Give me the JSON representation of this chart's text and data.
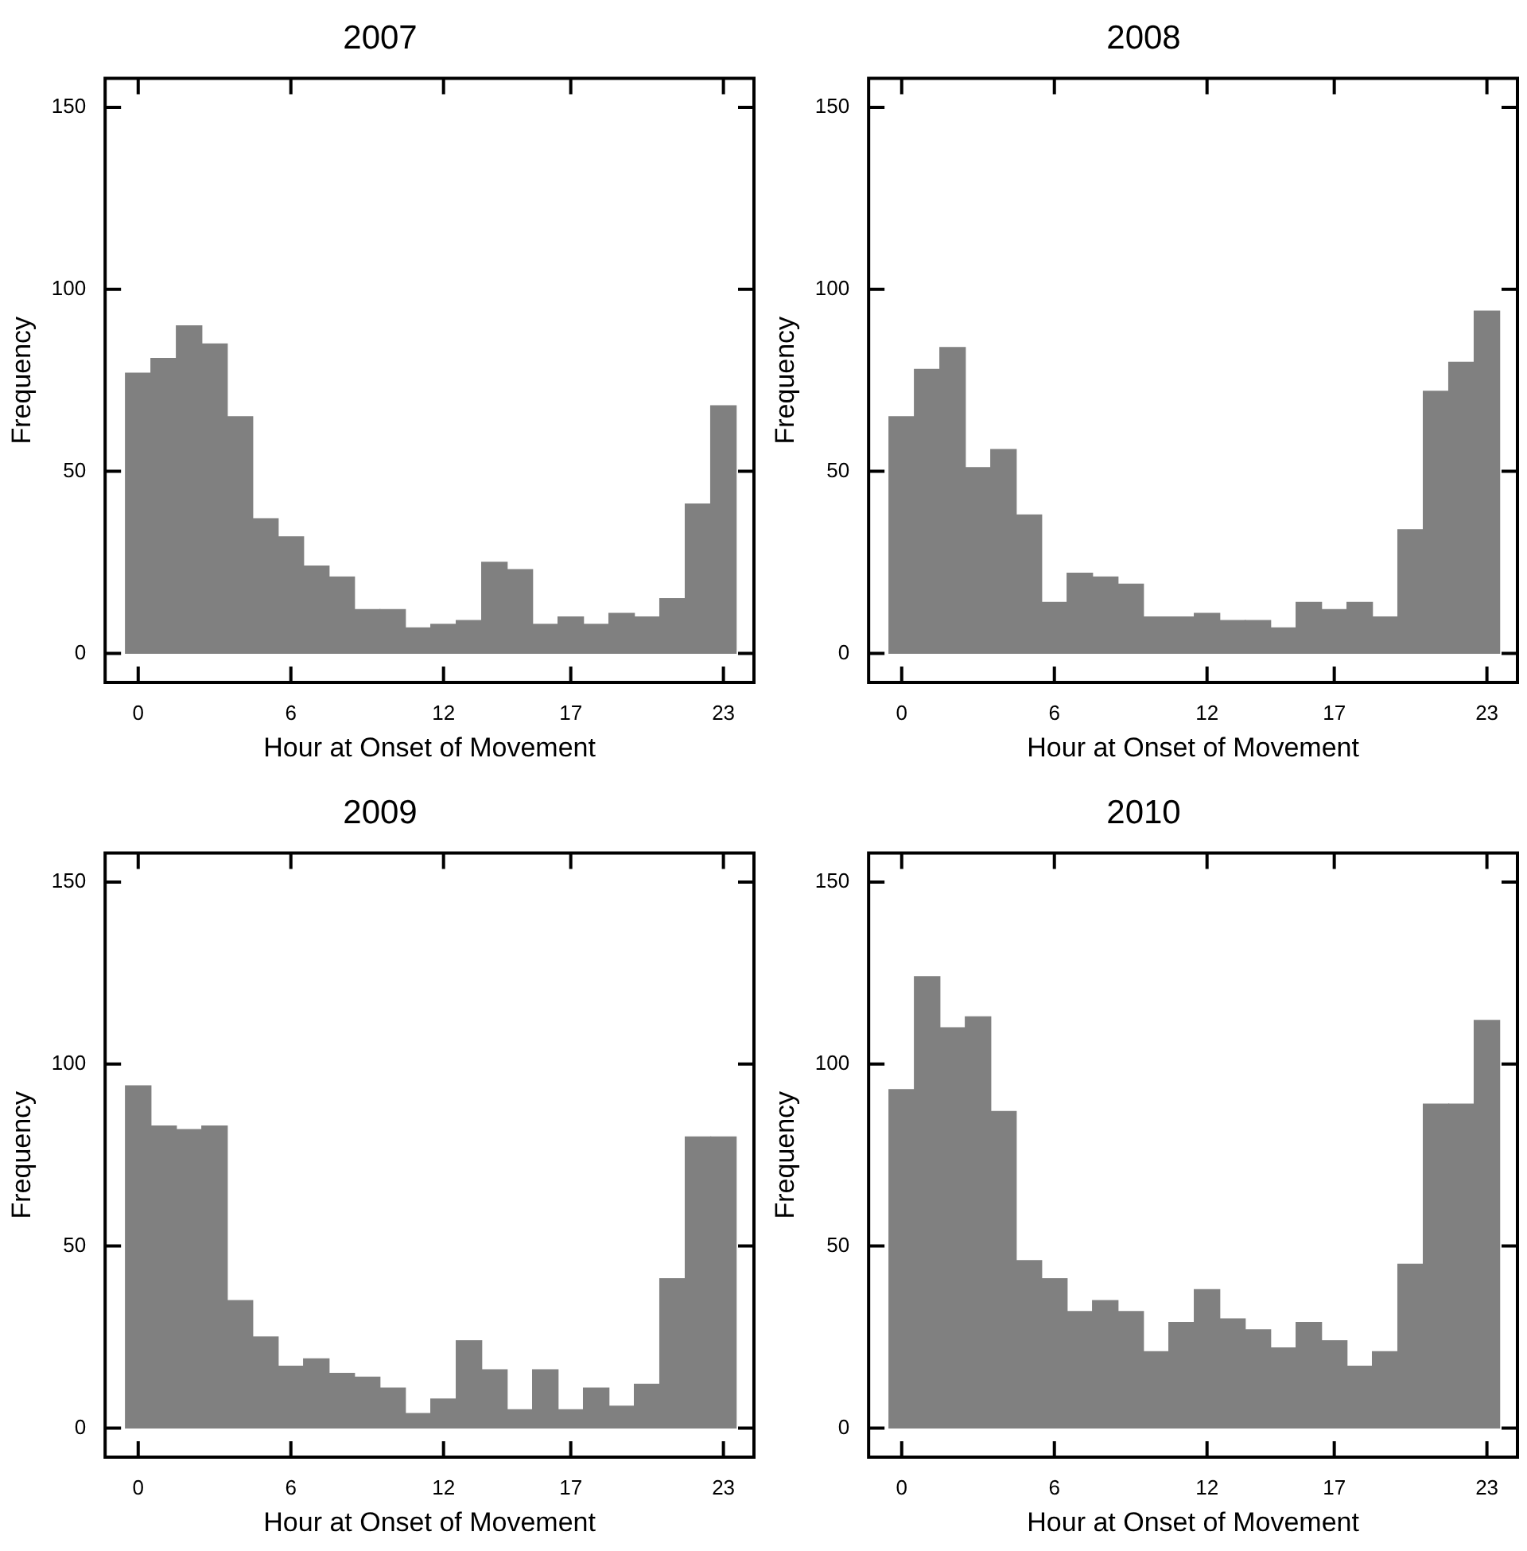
{
  "chart_data": [
    {
      "type": "histogram",
      "title": "2007",
      "xlabel": "Hour at Onset of Movement",
      "ylabel": "Frequency",
      "color": "#808080",
      "bins": [
        -0.5,
        0.5,
        1.5,
        2.5,
        3.5,
        4.5,
        5.5,
        6.5,
        7.5,
        8.5,
        9.5,
        10.5,
        11.5,
        12.5,
        13.5,
        14.5,
        15.5,
        16.5,
        17.5,
        18.5,
        19.5,
        20.5,
        21.5,
        22.5,
        23.5
      ],
      "values": [
        77,
        81,
        90,
        85,
        65,
        37,
        32,
        24,
        21,
        12,
        12,
        7,
        8,
        9,
        25,
        23,
        8,
        10,
        8,
        11,
        10,
        15,
        41,
        68
      ],
      "xlim": [
        -1.3,
        24.2
      ],
      "xticks": [
        0,
        6,
        12,
        17,
        23
      ],
      "ylim": [
        -8,
        158
      ],
      "yticks": [
        0,
        50,
        100,
        150
      ]
    },
    {
      "type": "histogram",
      "title": "2008",
      "xlabel": "Hour at Onset of Movement",
      "ylabel": "Frequency",
      "color": "#808080",
      "bins": [
        -0.5,
        0.5,
        1.5,
        2.5,
        3.5,
        4.5,
        5.5,
        6.5,
        7.5,
        8.5,
        9.5,
        10.5,
        11.5,
        12.5,
        13.5,
        14.5,
        15.5,
        16.5,
        17.5,
        18.5,
        19.5,
        20.5,
        21.5,
        22.5,
        23.5
      ],
      "values": [
        65,
        78,
        84,
        51,
        56,
        38,
        14,
        22,
        21,
        19,
        10,
        10,
        11,
        9,
        9,
        7,
        14,
        12,
        14,
        10,
        34,
        72,
        80,
        94
      ],
      "xlim": [
        -1.3,
        24.2
      ],
      "xticks": [
        0,
        6,
        12,
        17,
        23
      ],
      "ylim": [
        -8,
        158
      ],
      "yticks": [
        0,
        50,
        100,
        150
      ]
    },
    {
      "type": "histogram",
      "title": "2009",
      "xlabel": "Hour at Onset of Movement",
      "ylabel": "Frequency",
      "color": "#808080",
      "bins": [
        -0.5,
        0.5,
        1.5,
        2.5,
        3.5,
        4.5,
        5.5,
        6.5,
        7.5,
        8.5,
        9.5,
        10.5,
        11.5,
        12.5,
        13.5,
        14.5,
        15.5,
        16.5,
        17.5,
        18.5,
        19.5,
        20.5,
        21.5,
        22.5,
        23.5
      ],
      "values": [
        94,
        83,
        82,
        83,
        35,
        25,
        17,
        19,
        15,
        14,
        11,
        4,
        8,
        24,
        16,
        5,
        16,
        5,
        11,
        6,
        12,
        41,
        80,
        80
      ],
      "xlim": [
        -1.3,
        24.2
      ],
      "xticks": [
        0,
        6,
        12,
        17,
        23
      ],
      "ylim": [
        -8,
        158
      ],
      "yticks": [
        0,
        50,
        100,
        150
      ]
    },
    {
      "type": "histogram",
      "title": "2010",
      "xlabel": "Hour at Onset of Movement",
      "ylabel": "Frequency",
      "color": "#808080",
      "bins": [
        -0.5,
        0.5,
        1.5,
        2.5,
        3.5,
        4.5,
        5.5,
        6.5,
        7.5,
        8.5,
        9.5,
        10.5,
        11.5,
        12.5,
        13.5,
        14.5,
        15.5,
        16.5,
        17.5,
        18.5,
        19.5,
        20.5,
        21.5,
        22.5,
        23.5
      ],
      "values": [
        93,
        124,
        110,
        113,
        87,
        46,
        41,
        32,
        35,
        32,
        21,
        29,
        38,
        30,
        27,
        22,
        29,
        24,
        17,
        21,
        45,
        89,
        89,
        112
      ],
      "xlim": [
        -1.3,
        24.2
      ],
      "xticks": [
        0,
        6,
        12,
        17,
        23
      ],
      "ylim": [
        -8,
        158
      ],
      "yticks": [
        0,
        50,
        100,
        150
      ]
    }
  ]
}
